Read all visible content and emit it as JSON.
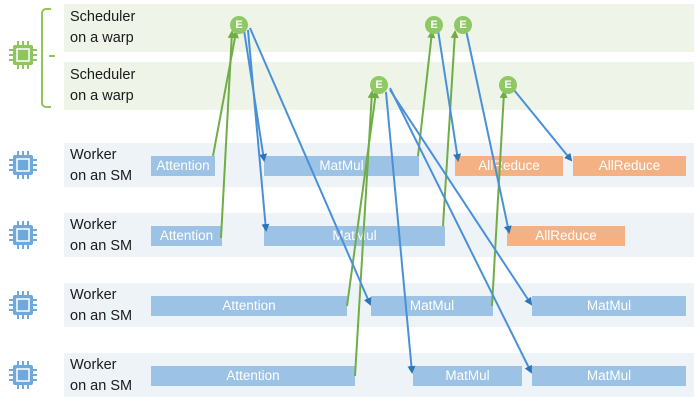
{
  "rows": [
    {
      "line1": "Scheduler",
      "line2": "on a warp"
    },
    {
      "line1": "Scheduler",
      "line2": "on a warp"
    },
    {
      "line1": "Worker",
      "line2": "on an SM"
    },
    {
      "line1": "Worker",
      "line2": "on an SM"
    },
    {
      "line1": "Worker",
      "line2": "on an SM"
    },
    {
      "line1": "Worker",
      "line2": "on an SM"
    }
  ],
  "event_label": "E",
  "tasks": {
    "w1_attention": "Attention",
    "w1_matmul": "MatMul",
    "w1_allreduce_a": "AllReduce",
    "w1_allreduce_b": "AllReduce",
    "w2_attention": "Attention",
    "w2_matmul": "MatMul",
    "w2_allreduce": "AllReduce",
    "w3_attention": "Attention",
    "w3_matmul_a": "MatMul",
    "w3_matmul_b": "MatMul",
    "w4_attention": "Attention",
    "w4_matmul_a": "MatMul",
    "w4_matmul_b": "MatMul"
  },
  "colors": {
    "green": "#8fc964",
    "blue": "#4a90d9",
    "task_blue": "#9cc2e5",
    "task_orange": "#f4b183"
  },
  "icons": [
    "green-chip-icon",
    "blue-chip-icon"
  ]
}
